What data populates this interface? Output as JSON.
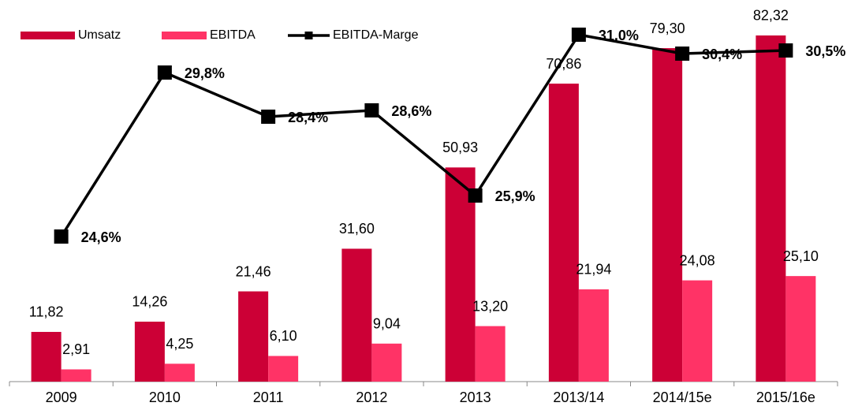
{
  "chart_data": {
    "type": "bar-line",
    "categories": [
      "2009",
      "2010",
      "2011",
      "2012",
      "2013",
      "2013/14",
      "2014/15e",
      "2015/16e"
    ],
    "ylim": [
      0,
      90
    ],
    "y2lim": [
      20,
      32
    ],
    "legend": "top-left",
    "series": [
      {
        "name": "Umsatz",
        "type": "bar",
        "color": "#cc0036",
        "values": [
          11.82,
          14.26,
          21.46,
          31.6,
          50.93,
          70.86,
          79.3,
          82.32
        ],
        "value_labels": [
          "11,82",
          "14,26",
          "21,46",
          "31,60",
          "50,93",
          "70,86",
          "79,30",
          "82,32"
        ]
      },
      {
        "name": "EBITDA",
        "type": "bar",
        "color": "#ff3366",
        "values": [
          2.91,
          4.25,
          6.1,
          9.04,
          13.2,
          21.94,
          24.08,
          25.1
        ],
        "value_labels": [
          "2,91",
          "4,25",
          "6,10",
          "9,04",
          "13,20",
          "21,94",
          "24,08",
          "25,10"
        ]
      },
      {
        "name": "EBITDA-Marge",
        "type": "line",
        "axis": "y2",
        "color": "#000000",
        "values": [
          24.6,
          29.8,
          28.4,
          28.6,
          25.9,
          31.0,
          30.4,
          30.5
        ],
        "value_labels": [
          "24,6%",
          "29,8%",
          "28,4%",
          "28,6%",
          "25,9%",
          "31,0%",
          "30,4%",
          "30,5%"
        ]
      }
    ]
  }
}
